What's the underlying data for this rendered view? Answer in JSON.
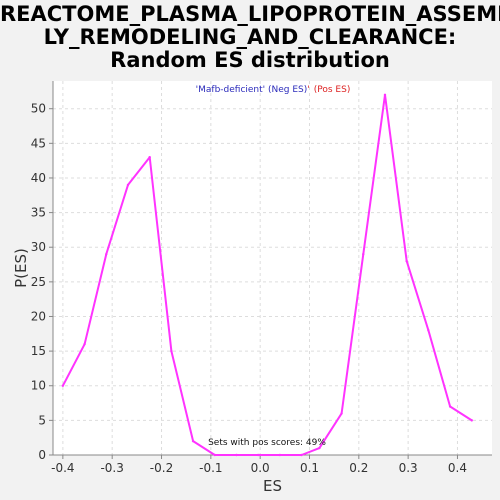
{
  "title_lines": [
    "REACTOME_PLASMA_LIPOPROTEIN_ASSEMB",
    "LY_REMODELING_AND_CLEARANCE:",
    "Random ES distribution"
  ],
  "legend": {
    "neg_label": "'Mafb-deficient' (Neg ES)",
    "sep": "'",
    "pos_label": "(Pos ES)",
    "neg_color": "#2b2bbb",
    "pos_color": "#dd2222"
  },
  "annotation": "Sets with pos scores: 49%",
  "colors": {
    "line": "#ff33ff",
    "plot_bg": "#ffffff",
    "grid": "#dddddd"
  },
  "chart_data": {
    "type": "line",
    "xlabel": "ES",
    "ylabel": "P(ES)",
    "xlim": [
      -0.42,
      0.47
    ],
    "ylim": [
      0,
      54
    ],
    "grid": true,
    "xticks": [
      -0.4,
      -0.3,
      -0.2,
      -0.1,
      0.0,
      0.1,
      0.2,
      0.3,
      0.4
    ],
    "xtick_labels": [
      "-0.4",
      "-0.3",
      "-0.2",
      "-0.1",
      "0.0",
      "0.1",
      "0.2",
      "0.3",
      "0.4"
    ],
    "yticks": [
      0,
      5,
      10,
      15,
      20,
      25,
      30,
      35,
      40,
      45,
      50
    ],
    "ytick_labels": [
      "0",
      "5",
      "10",
      "15",
      "20",
      "25",
      "30",
      "35",
      "40",
      "45",
      "50"
    ],
    "series": [
      {
        "x": [
          -0.4,
          -0.356,
          -0.312,
          -0.268,
          -0.224,
          -0.18,
          -0.136,
          -0.092,
          -0.048,
          -0.004,
          0.04,
          0.084,
          0.12,
          0.165,
          0.209,
          0.253,
          0.297,
          0.341,
          0.385,
          0.429
        ],
        "y": [
          10,
          16,
          29,
          39,
          43,
          15,
          2,
          0,
          0,
          0,
          0,
          0,
          1,
          6,
          29,
          52,
          28,
          18,
          7,
          5
        ]
      }
    ]
  }
}
